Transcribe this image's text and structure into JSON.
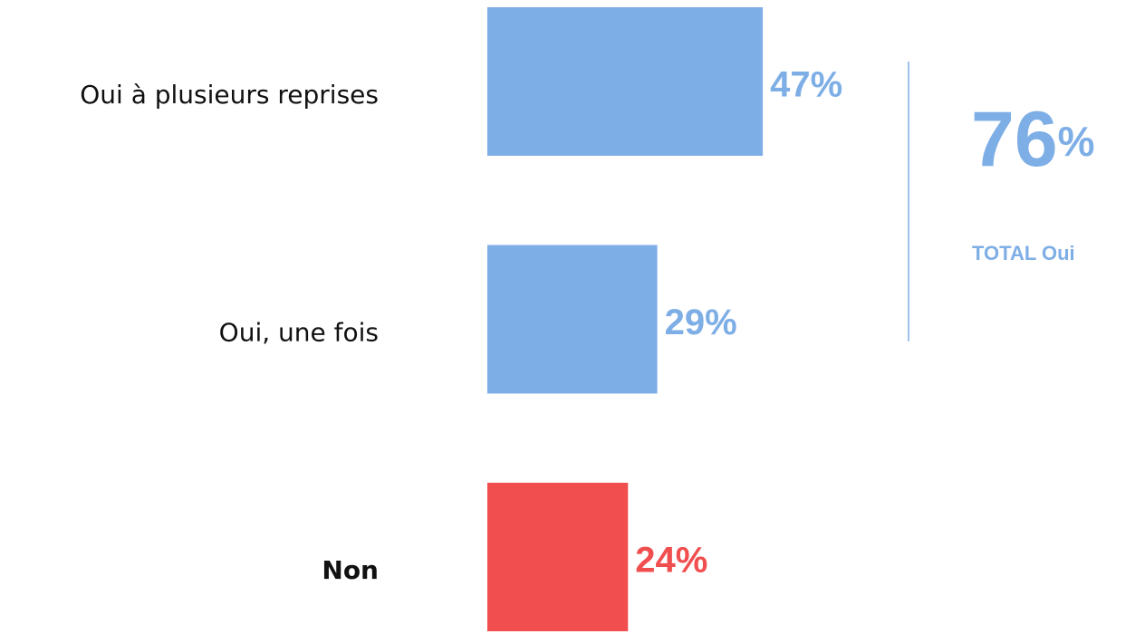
{
  "chart_data": {
    "type": "hbar",
    "categories": [
      "Oui à plusieurs reprises",
      "Oui, une fois",
      "Non"
    ],
    "values": [
      47,
      29,
      24
    ],
    "value_labels": [
      "47%",
      "29%",
      "24%"
    ],
    "colors": [
      "#7eaee6",
      "#7eaee6",
      "#f04e4f"
    ],
    "bold_categories": [
      false,
      false,
      true
    ],
    "total": {
      "value": 76,
      "label": "76%",
      "caption": "TOTAL Oui",
      "color": "#7eaee6"
    }
  }
}
